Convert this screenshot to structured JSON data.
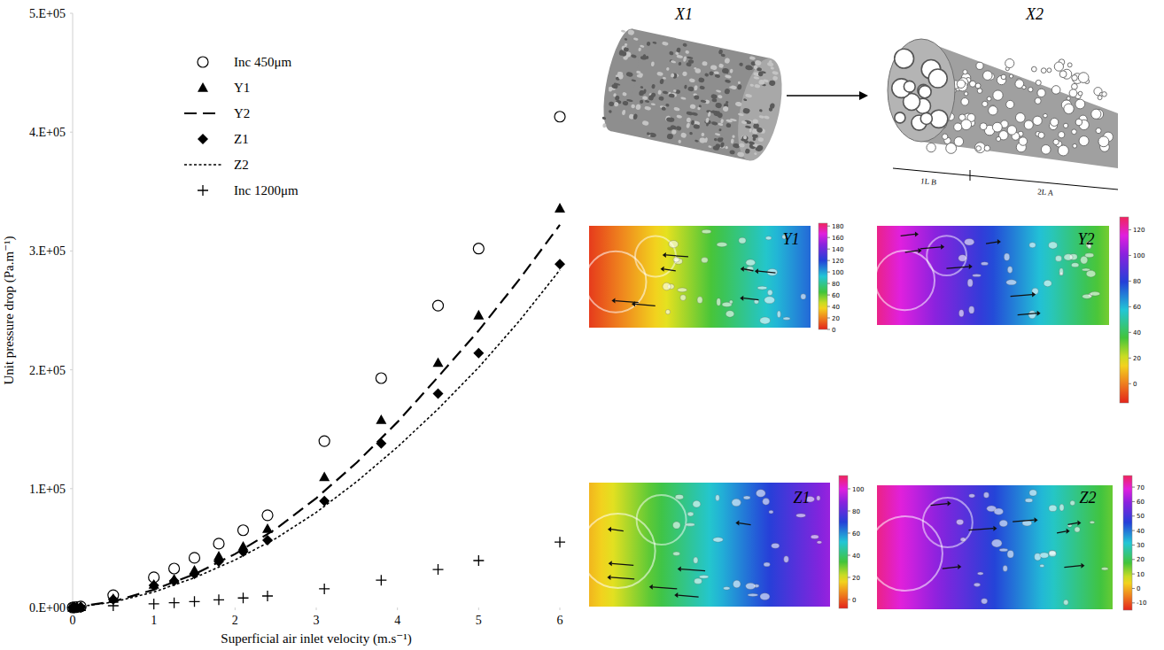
{
  "chart_data": {
    "type": "scatter",
    "xlabel": "Superficial air inlet velocity (m.s⁻¹)",
    "ylabel": "Unit pressure drop (Pa.m⁻¹)",
    "xlim": [
      0,
      6
    ],
    "ylim": [
      0,
      500000
    ],
    "xticks": [
      0,
      1,
      2,
      3,
      4,
      5,
      6
    ],
    "yticks": [
      {
        "value": 0,
        "label": "0.E+00"
      },
      {
        "value": 100000,
        "label": "1.E+05"
      },
      {
        "value": 200000,
        "label": "2.E+05"
      },
      {
        "value": 300000,
        "label": "3.E+05"
      },
      {
        "value": 400000,
        "label": "4.E+05"
      },
      {
        "value": 500000,
        "label": "5.E+05"
      }
    ],
    "legend": "upper left",
    "grid": false,
    "series": [
      {
        "name": "Inc 450μm",
        "type": "scatter",
        "marker": "circle",
        "color": "#000000",
        "x": [
          0,
          0.02,
          0.05,
          0.1,
          0.5,
          1,
          1.25,
          1.5,
          1.8,
          2.1,
          2.4,
          3.1,
          3.8,
          4.5,
          5,
          6
        ],
        "values": [
          0,
          100,
          300,
          800,
          10400,
          25400,
          32800,
          41800,
          53700,
          65000,
          77600,
          140000,
          193000,
          254000,
          302000,
          413000
        ]
      },
      {
        "name": "Y1",
        "type": "scatter",
        "marker": "triangle",
        "color": "#000000",
        "x": [
          0,
          0.02,
          0.05,
          0.1,
          0.5,
          1,
          1.25,
          1.5,
          1.8,
          2.1,
          2.4,
          3.1,
          3.8,
          4.5,
          5,
          6
        ],
        "values": [
          0,
          80,
          250,
          600,
          7500,
          19400,
          23900,
          31300,
          43300,
          51500,
          66400,
          110000,
          158000,
          206000,
          246000,
          336000
        ]
      },
      {
        "name": "Y2",
        "type": "line",
        "line_style": "dashed",
        "color": "#000000",
        "x": [
          0,
          0.5,
          1,
          1.5,
          2,
          2.5,
          3,
          3.5,
          4,
          4.5,
          5,
          5.5,
          6
        ],
        "values": [
          0,
          5000,
          15000,
          28000,
          45000,
          66000,
          92000,
          122000,
          156000,
          194000,
          233000,
          276000,
          322000
        ]
      },
      {
        "name": "Z1",
        "type": "scatter",
        "marker": "diamond",
        "color": "#000000",
        "x": [
          0,
          0.02,
          0.05,
          0.1,
          0.5,
          1,
          1.25,
          1.5,
          1.8,
          2.1,
          2.4,
          3.1,
          3.8,
          4.5,
          5,
          6
        ],
        "values": [
          0,
          70,
          220,
          500,
          6700,
          18700,
          22400,
          28400,
          38800,
          47000,
          56700,
          89600,
          138000,
          180000,
          214000,
          289000
        ]
      },
      {
        "name": "Z2",
        "type": "line",
        "line_style": "dotted",
        "color": "#000000",
        "x": [
          0,
          0.5,
          1,
          1.5,
          2,
          2.5,
          3,
          3.5,
          4,
          4.5,
          5,
          5.5,
          6
        ],
        "values": [
          0,
          4500,
          13000,
          25000,
          40000,
          58000,
          80000,
          106000,
          135000,
          167000,
          202000,
          241000,
          284000
        ]
      },
      {
        "name": "Inc 1200μm",
        "type": "scatter",
        "marker": "plus",
        "color": "#000000",
        "x": [
          0,
          0.02,
          0.05,
          0.1,
          0.5,
          1,
          1.25,
          1.5,
          1.8,
          2.1,
          2.4,
          3.1,
          3.8,
          4.5,
          5,
          6
        ],
        "values": [
          0,
          10,
          30,
          80,
          1500,
          3000,
          4000,
          5000,
          6500,
          8000,
          9700,
          15700,
          23000,
          32000,
          39500,
          55000
        ]
      }
    ]
  },
  "panels": [
    {
      "label": "X1"
    },
    {
      "label": "X2",
      "annotations": [
        "1L B",
        "2L A"
      ]
    },
    {
      "label": "Y1",
      "values": [
        5,
        112
      ],
      "colorbar": {
        "range": [
          0,
          185
        ],
        "ticks": [
          0,
          20,
          40,
          60,
          80,
          100,
          120,
          140,
          160,
          180
        ]
      }
    },
    {
      "label": "Y2",
      "values": [
        125,
        30
      ],
      "colorbar": {
        "range": [
          -15,
          130
        ],
        "ticks": [
          0,
          20,
          40,
          60,
          80,
          100,
          120
        ]
      }
    },
    {
      "label": "Z1",
      "values": [
        12,
        90
      ],
      "colorbar": {
        "range": [
          -8,
          112
        ],
        "ticks": [
          0,
          20,
          40,
          60,
          80,
          100
        ]
      }
    },
    {
      "label": "Z2",
      "values": [
        75,
        15
      ],
      "colorbar": {
        "range": [
          -15,
          78
        ],
        "ticks": [
          -10,
          0,
          10,
          20,
          30,
          40,
          50,
          60,
          70
        ]
      }
    }
  ]
}
